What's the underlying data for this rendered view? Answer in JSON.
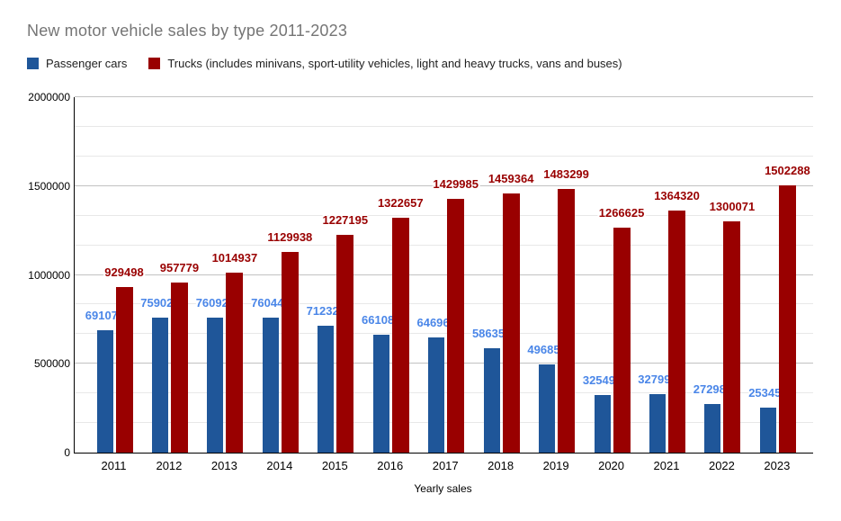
{
  "title": "New motor vehicle sales by type 2011-2023",
  "legend": {
    "items": [
      {
        "label": "Passenger cars",
        "color": "#1f5699"
      },
      {
        "label": "Trucks (includes minivans, sport-utility vehicles, light and heavy trucks, vans and buses)",
        "color": "#990000"
      }
    ]
  },
  "colors": {
    "title_text": "#757575",
    "axis_line": "#000000",
    "grid_major": "#c2c2c2",
    "grid_minor": "#e8e8e8",
    "passenger_bar": "#1f5699",
    "passenger_label": "#4a86e8",
    "trucks_bar": "#990000",
    "trucks_label": "#990000"
  },
  "chart_data": {
    "type": "bar",
    "title": "New motor vehicle sales by type 2011-2023",
    "xlabel": "Yearly sales",
    "ylabel": "",
    "categories": [
      "2011",
      "2012",
      "2013",
      "2014",
      "2015",
      "2016",
      "2017",
      "2018",
      "2019",
      "2020",
      "2021",
      "2022",
      "2023"
    ],
    "series": [
      {
        "name": "Passenger cars",
        "color": "#1f5699",
        "label_color": "#4a86e8",
        "values": [
          691079,
          759024,
          760924,
          760449,
          712322,
          661088,
          646960,
          586357,
          496851,
          325494,
          327994,
          272986,
          253453
        ]
      },
      {
        "name": "Trucks (includes minivans, sport-utility vehicles, light and heavy trucks, vans and buses)",
        "color": "#990000",
        "label_color": "#990000",
        "values": [
          929498,
          957779,
          1014937,
          1129938,
          1227195,
          1322657,
          1429985,
          1459364,
          1483299,
          1266625,
          1364320,
          1300071,
          1502288
        ]
      }
    ],
    "ylim": [
      0,
      2000000
    ],
    "yticks": [
      0,
      500000,
      1000000,
      1500000,
      2000000
    ],
    "minor_gridlines_per_major": 3,
    "grid": true,
    "legend_position": "top",
    "data_labels": true
  }
}
